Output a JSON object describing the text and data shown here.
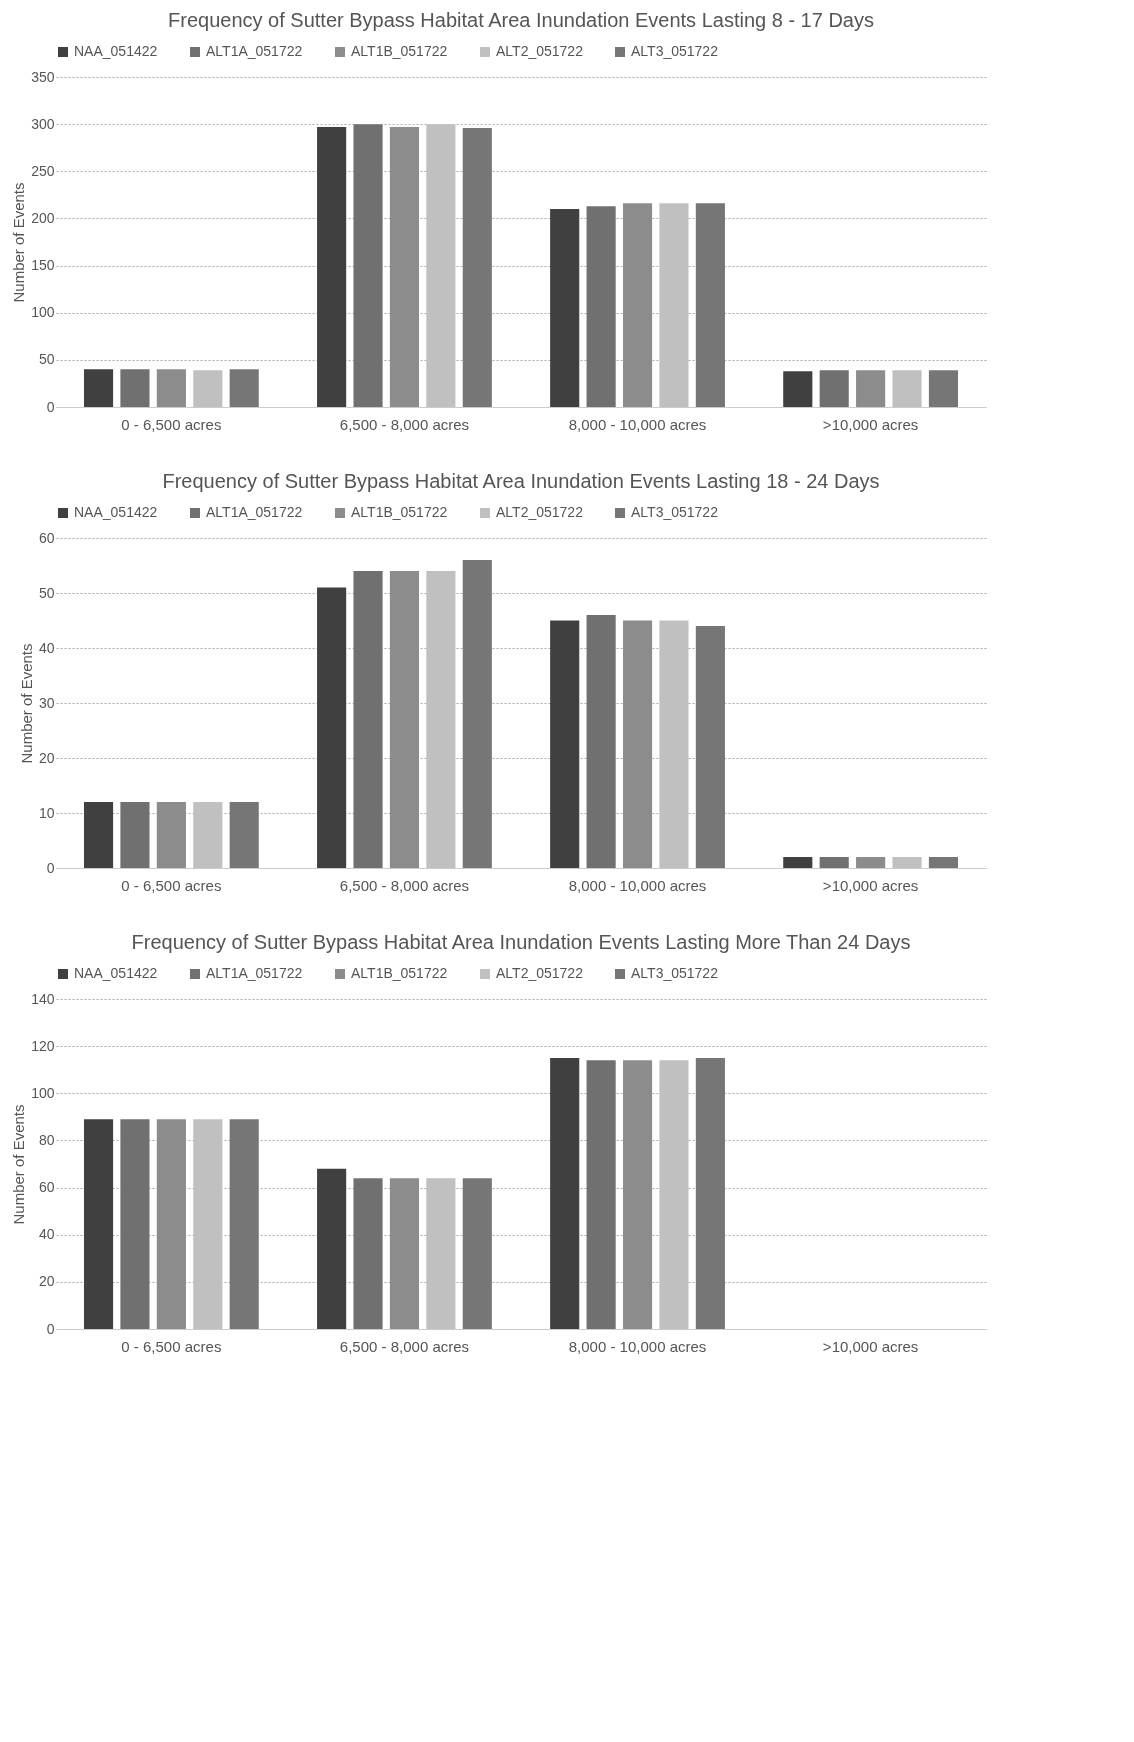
{
  "chart_data": [
    {
      "type": "bar",
      "title": "Frequency of Sutter Bypass Habitat Area Inundation Events Lasting 8 - 17 Days",
      "ylabel": "Number of Events",
      "categories": [
        "0 - 6,500 acres",
        "6,500 - 8,000 acres",
        "8,000 - 10,000 acres",
        ">10,000 acres"
      ],
      "ylim": [
        0,
        350
      ],
      "yticks": [
        0,
        50,
        100,
        150,
        200,
        250,
        300,
        350
      ],
      "grid": "y",
      "legend": "top",
      "series": [
        {
          "name": "NAA_051422",
          "color": "#404040",
          "values": [
            40,
            297,
            210,
            38
          ]
        },
        {
          "name": "ALT1A_051722",
          "color": "#707070",
          "values": [
            40,
            300,
            213,
            39
          ]
        },
        {
          "name": "ALT1B_051722",
          "color": "#8c8c8c",
          "values": [
            40,
            297,
            216,
            39
          ]
        },
        {
          "name": "ALT2_051722",
          "color": "#c0c0c0",
          "values": [
            39,
            300,
            216,
            39
          ]
        },
        {
          "name": "ALT3_051722",
          "color": "#767676",
          "values": [
            40,
            296,
            216,
            39
          ]
        }
      ]
    },
    {
      "type": "bar",
      "title": "Frequency of Sutter Bypass Habitat Area Inundation Events Lasting 18 - 24 Days",
      "ylabel": "Number of Events",
      "categories": [
        "0 - 6,500 acres",
        "6,500 - 8,000 acres",
        "8,000 - 10,000 acres",
        ">10,000 acres"
      ],
      "ylim": [
        0,
        60
      ],
      "yticks": [
        0,
        10,
        20,
        30,
        40,
        50,
        60
      ],
      "grid": "y",
      "legend": "top",
      "series": [
        {
          "name": "NAA_051422",
          "color": "#404040",
          "values": [
            12,
            51,
            45,
            2
          ]
        },
        {
          "name": "ALT1A_051722",
          "color": "#707070",
          "values": [
            12,
            54,
            46,
            2
          ]
        },
        {
          "name": "ALT1B_051722",
          "color": "#8c8c8c",
          "values": [
            12,
            54,
            45,
            2
          ]
        },
        {
          "name": "ALT2_051722",
          "color": "#c0c0c0",
          "values": [
            12,
            54,
            45,
            2
          ]
        },
        {
          "name": "ALT3_051722",
          "color": "#767676",
          "values": [
            12,
            56,
            44,
            2
          ]
        }
      ]
    },
    {
      "type": "bar",
      "title": "Frequency of Sutter Bypass Habitat Area Inundation Events Lasting More Than 24 Days",
      "ylabel": "Number of Events",
      "categories": [
        "0 - 6,500 acres",
        "6,500 - 8,000 acres",
        "8,000 - 10,000 acres",
        ">10,000 acres"
      ],
      "ylim": [
        0,
        140
      ],
      "yticks": [
        0,
        20,
        40,
        60,
        80,
        100,
        120,
        140
      ],
      "grid": "y",
      "legend": "top",
      "series": [
        {
          "name": "NAA_051422",
          "color": "#404040",
          "values": [
            89,
            68,
            115,
            0
          ]
        },
        {
          "name": "ALT1A_051722",
          "color": "#707070",
          "values": [
            89,
            64,
            114,
            0
          ]
        },
        {
          "name": "ALT1B_051722",
          "color": "#8c8c8c",
          "values": [
            89,
            64,
            114,
            0
          ]
        },
        {
          "name": "ALT2_051722",
          "color": "#c0c0c0",
          "values": [
            89,
            64,
            114,
            0
          ]
        },
        {
          "name": "ALT3_051722",
          "color": "#767676",
          "values": [
            89,
            64,
            115,
            0
          ]
        }
      ]
    }
  ]
}
